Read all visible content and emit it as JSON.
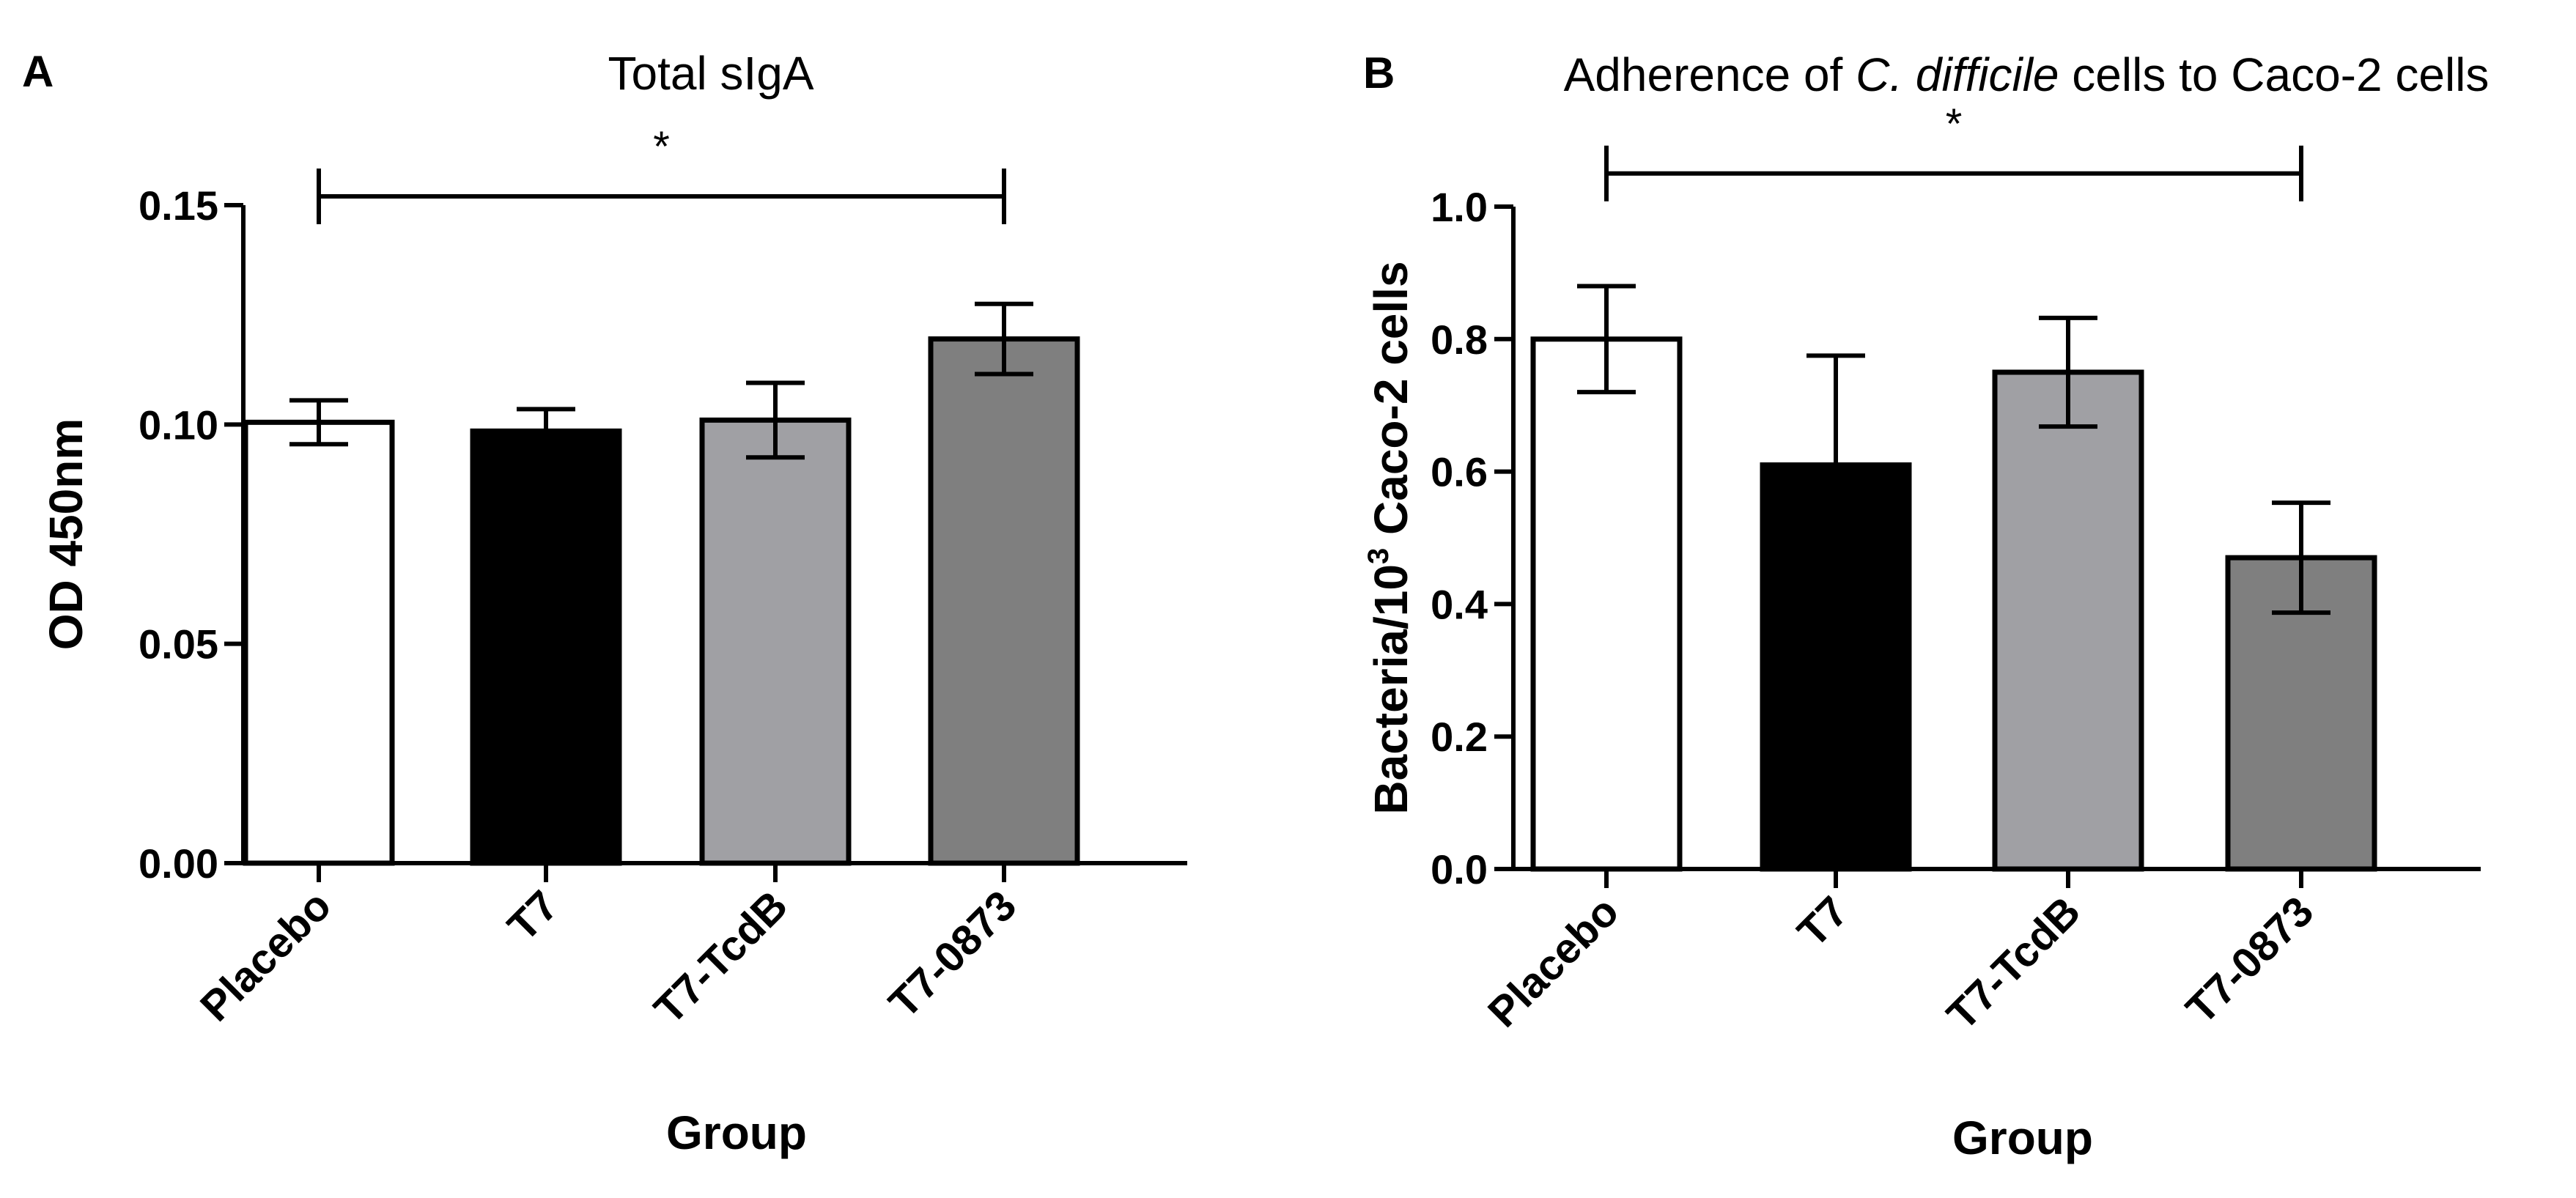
{
  "chart_data": [
    {
      "panel": "A",
      "type": "bar",
      "title": "Total sIgA",
      "title_parts": [],
      "xlabel": "Group",
      "ylabel": "OD 450nm",
      "ylabel_sup": "",
      "ylabel_after": "",
      "categories": [
        "Placebo",
        "T7",
        "T7-TcdB",
        "T7-0873"
      ],
      "values": [
        0.1005,
        0.0985,
        0.101,
        0.1195
      ],
      "errors": [
        0.005,
        0.005,
        0.0085,
        0.008
      ],
      "colors": [
        "#ffffff",
        "#000000",
        "#a0a0a4",
        "#7f7f7f"
      ],
      "ylim": [
        0,
        0.15
      ],
      "yticks": [
        0,
        0.05,
        0.1,
        0.15
      ],
      "ytick_labels": [
        "0.00",
        "0.05",
        "0.10",
        "0.15"
      ],
      "significance": {
        "from": 0,
        "to": 3,
        "y": 0.152,
        "label": "*"
      }
    },
    {
      "panel": "B",
      "type": "bar",
      "title": "",
      "title_parts": [
        {
          "text": "Adherence of ",
          "italic": false
        },
        {
          "text": "C. difficile",
          "italic": true
        },
        {
          "text": " cells to Caco-2 cells",
          "italic": false
        }
      ],
      "xlabel": "Group",
      "ylabel": "Bacteria/10",
      "ylabel_sup": "3",
      "ylabel_after": " Caco-2 cells",
      "categories": [
        "Placebo",
        "T7",
        "T7-TcdB",
        "T7-0873"
      ],
      "values": [
        0.8,
        0.61,
        0.75,
        0.47
      ],
      "errors": [
        0.08,
        0.165,
        0.082,
        0.083
      ],
      "colors": [
        "#ffffff",
        "#000000",
        "#a0a0a4",
        "#7f7f7f"
      ],
      "ylim": [
        0,
        1.0
      ],
      "yticks": [
        0,
        0.2,
        0.4,
        0.6,
        0.8,
        1.0
      ],
      "ytick_labels": [
        "0.0",
        "0.2",
        "0.4",
        "0.6",
        "0.8",
        "1.0"
      ],
      "significance": {
        "from": 0,
        "to": 3,
        "y": 1.05,
        "label": "*"
      }
    }
  ]
}
